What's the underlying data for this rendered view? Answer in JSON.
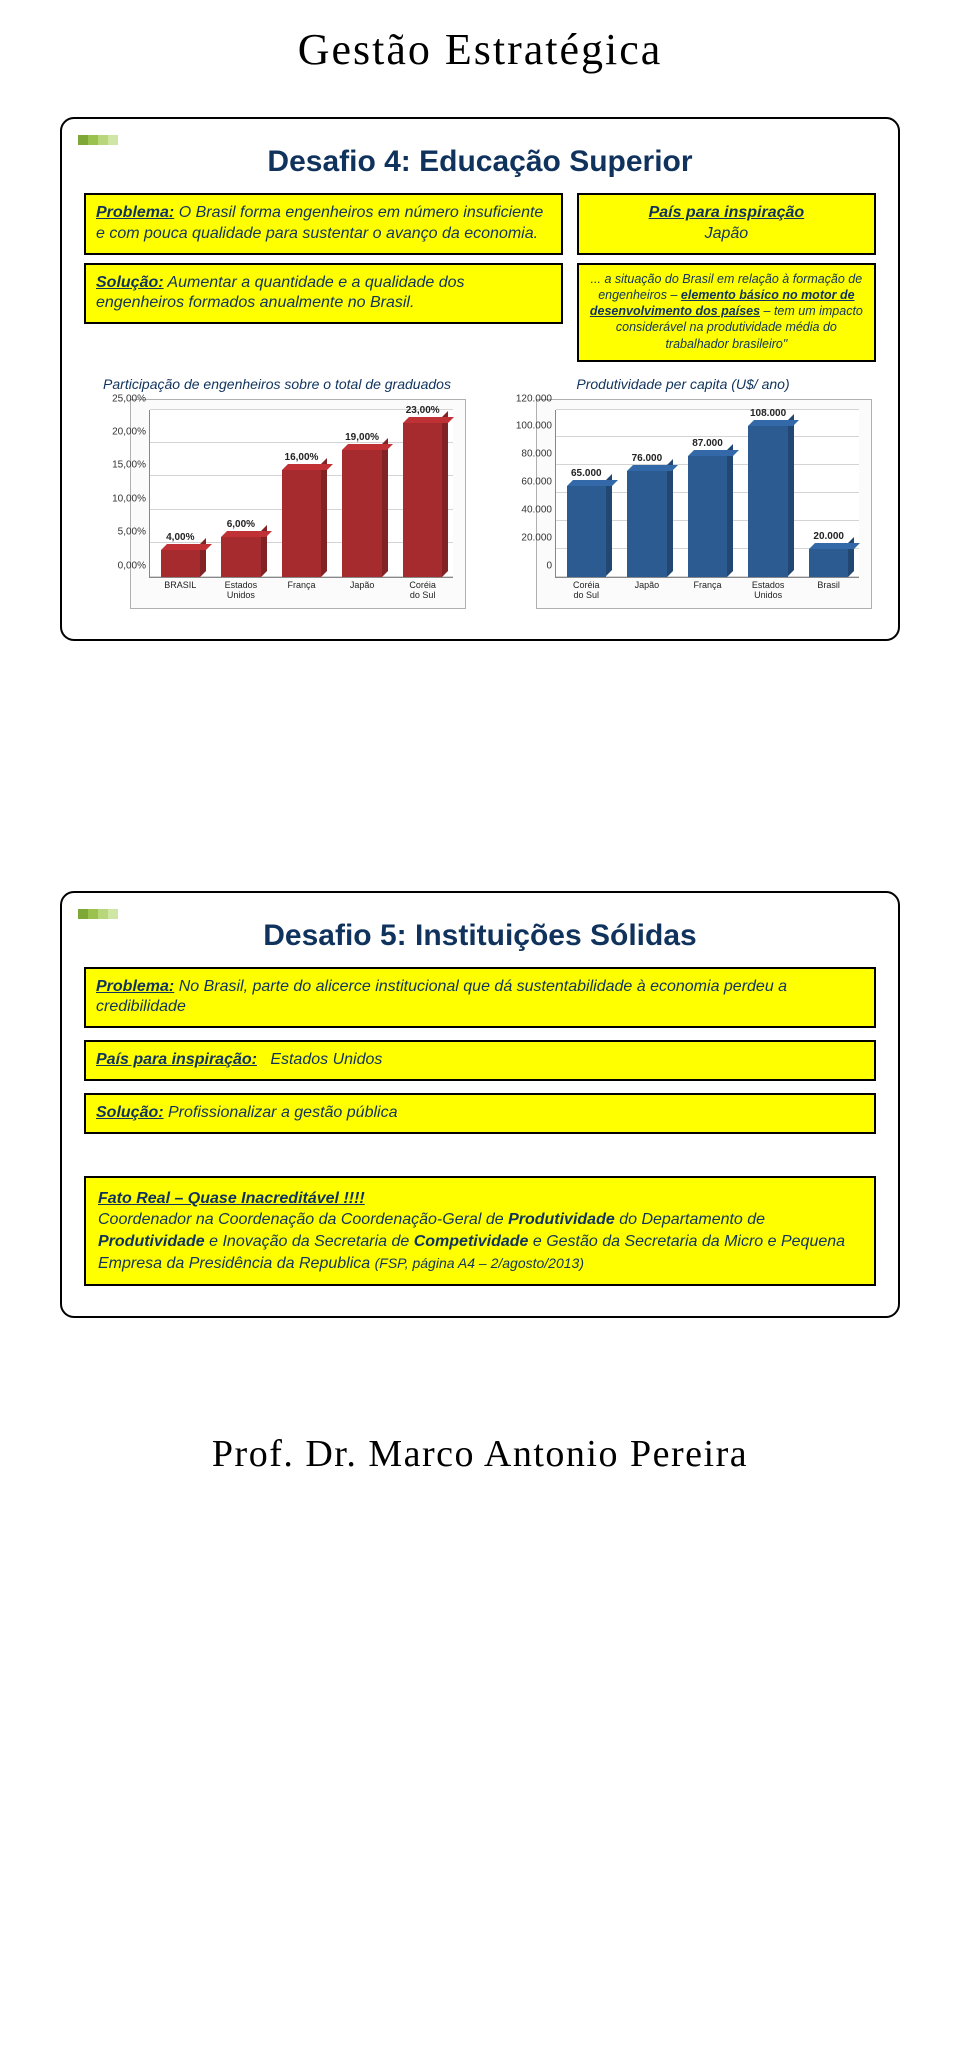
{
  "header": "Gestão Estratégica",
  "footer": "Prof. Dr. Marco Antonio Pereira",
  "slide1": {
    "title": "Desafio 4: Educação Superior",
    "problema_label": "Problema:",
    "problema_text": " O Brasil forma engenheiros em número insuficiente e com pouca qualidade para sustentar o avanço da economia.",
    "solucao_label": "Solução:",
    "solucao_text": " Aumentar a quantidade e a qualidade dos engenheiros formados anualmente no Brasil.",
    "inspiracao_label": "País para inspiração",
    "inspiracao_value": "Japão",
    "quote_pre": "... a situação do Brasil em relação à formação de engenheiros – ",
    "quote_u1": "elemento básico no motor de desenvolvimento dos países",
    "quote_mid": " – tem um impacto considerável na produtividade média do trabalhador brasileiro\"",
    "chart_left": {
      "caption": "Participação de engenheiros sobre o total de graduados",
      "categories": [
        "BRASIL",
        "Estados Unidos",
        "França",
        "Japão",
        "Coréia do Sul"
      ],
      "values_pct": [
        4.0,
        6.0,
        16.0,
        19.0,
        23.0
      ],
      "value_labels": [
        "4,00%",
        "6,00%",
        "16,00%",
        "19,00%",
        "23,00%"
      ],
      "yticks": [
        0,
        5,
        10,
        15,
        20,
        25
      ],
      "ytick_labels": [
        "0,00%",
        "5,00%",
        "10,00%",
        "15,00%",
        "20,00%",
        "25,00%"
      ],
      "ymax": 25,
      "bar_color": "#a62b2e",
      "bg": "#fbfbfb"
    },
    "chart_right": {
      "caption": "Produtividade per capita (U$/ ano)",
      "categories": [
        "Coréia do Sul",
        "Japão",
        "França",
        "Estados Unidos",
        "Brasil"
      ],
      "values": [
        65000,
        76000,
        87000,
        108000,
        20000
      ],
      "value_labels": [
        "65.000",
        "76.000",
        "87.000",
        "108.000",
        "20.000"
      ],
      "yticks": [
        0,
        20000,
        40000,
        60000,
        80000,
        100000,
        120000
      ],
      "ytick_labels": [
        "0",
        "20.000",
        "40.000",
        "60.000",
        "80.000",
        "100.000",
        "120.000"
      ],
      "ymax": 120000,
      "bar_color": "#2c5b92",
      "bg": "#fbfbfb"
    }
  },
  "slide2": {
    "title": "Desafio 5: Instituições Sólidas",
    "problema_label": "Problema:",
    "problema_text": " No Brasil, parte do alicerce institucional que dá sustentabilidade à economia perdeu a credibilidade",
    "inspiracao_label": "País para inspiração:",
    "inspiracao_value": "Estados Unidos",
    "solucao_label": "Solução:",
    "solucao_text": " Profissionalizar a gestão pública",
    "fato_headline": "Fato Real – Quase Inacreditável !!!!",
    "fato_body_1": "Coordenador na Coordenação da Coordenação-Geral de ",
    "fato_body_b1": "Produtividade",
    "fato_body_2": " do Departamento de ",
    "fato_body_b2": "Produtividade",
    "fato_body_3": " e Inovação da Secretaria de ",
    "fato_body_b3": "Competividade",
    "fato_body_4": " e Gestão da Secretaria da Micro e Pequena Empresa da Presidência da Republica ",
    "fato_src": "(FSP, página A4 – 2/agosto/2013)"
  }
}
